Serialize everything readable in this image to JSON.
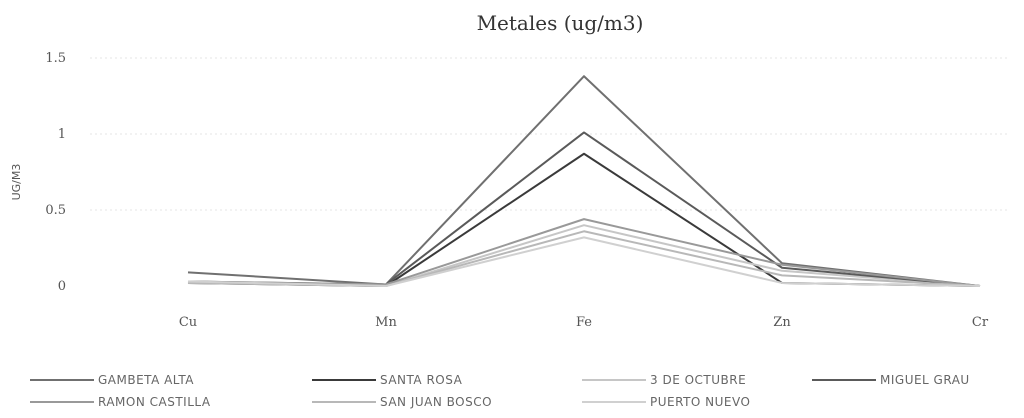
{
  "chart_data": {
    "type": "line",
    "title": "Metales (ug/m3)",
    "ylabel": "UG/M3",
    "xlabel": "",
    "categories": [
      "Cu",
      "Mn",
      "Fe",
      "Zn",
      "Cr"
    ],
    "y_ticks": [
      "0",
      "0.5",
      "1",
      "1.5"
    ],
    "ylim": [
      0,
      1.5
    ],
    "grid": true,
    "legend_position": "bottom",
    "series": [
      {
        "name": "GAMBETA ALTA",
        "values": [
          0.09,
          0.01,
          1.38,
          0.15,
          0.0
        ],
        "color": "#707070"
      },
      {
        "name": "SANTA ROSA",
        "values": [
          0.02,
          0.0,
          0.87,
          0.02,
          0.0
        ],
        "color": "#3a3a3a"
      },
      {
        "name": "3 DE OCTUBRE",
        "values": [
          0.03,
          0.0,
          0.4,
          0.1,
          0.0
        ],
        "color": "#c6c6c6"
      },
      {
        "name": "MIGUEL GRAU",
        "values": [
          0.03,
          0.01,
          1.01,
          0.12,
          0.0
        ],
        "color": "#5a5a5a"
      },
      {
        "name": "RAMON CASTILLA",
        "values": [
          0.03,
          0.01,
          0.44,
          0.14,
          0.0
        ],
        "color": "#999999"
      },
      {
        "name": "SAN JUAN BOSCO",
        "values": [
          0.02,
          0.0,
          0.36,
          0.07,
          0.0
        ],
        "color": "#b8b8b8"
      },
      {
        "name": "PUERTO NUEVO",
        "values": [
          0.03,
          0.0,
          0.32,
          0.02,
          0.0
        ],
        "color": "#d0d0d0"
      }
    ]
  }
}
